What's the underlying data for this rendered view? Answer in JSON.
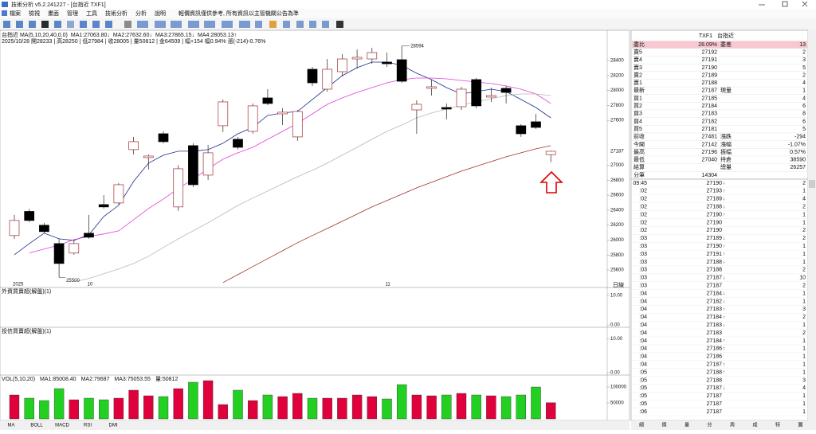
{
  "window": {
    "title": "技術分析 v5.2.241227 - [台指近 TXF1]",
    "menu": [
      "檔案",
      "檢視",
      "畫面",
      "管理",
      "工具",
      "技術分析",
      "分析",
      "說明"
    ],
    "notice": "輕價資訊僅供參考, 所有資訊以主管機關公告為準"
  },
  "chart": {
    "type": "candlestick",
    "header": "台指近 MA(5,10,20,40,0,0)",
    "info": "2025/10/28 開28233 | 高28250 | 低27984 | 收28005 | 量50812 | 金64509 | 幅+154 幅0.94% 漲(-214)-0.76%",
    "ylim": [
      25430,
      28730
    ],
    "yticks": [
      28400,
      28200,
      28000,
      27800,
      27600,
      27000,
      26800,
      26600,
      26400,
      26200,
      26000,
      25800,
      25600
    ],
    "last_price": 27187,
    "period": "日線",
    "up_color": "#e0003c",
    "down_color": "#22d022",
    "categories": [
      "2025",
      null,
      null,
      null,
      null,
      "10",
      null,
      null,
      null,
      null,
      null,
      null,
      null,
      null,
      null,
      null,
      null,
      null,
      null,
      null,
      null,
      null,
      null,
      null,
      null,
      "11",
      null,
      null,
      null,
      null,
      null,
      null,
      null,
      null,
      null,
      null,
      null
    ],
    "candles": [
      {
        "open": 26060,
        "high": 26336,
        "low": 26017,
        "close": 26262
      },
      {
        "open": 26383,
        "high": 26415,
        "low": 26240,
        "close": 26262
      },
      {
        "open": 26198,
        "high": 26230,
        "low": 26090,
        "close": 26113
      },
      {
        "open": 25953,
        "high": 26017,
        "low": 25500,
        "close": 25687
      },
      {
        "open": 25826,
        "high": 25996,
        "low": 25804,
        "close": 25953
      },
      {
        "open": 26091,
        "high": 26336,
        "low": 26017,
        "close": 26038
      },
      {
        "open": 26474,
        "high": 26600,
        "low": 26420,
        "close": 26443
      },
      {
        "open": 26496,
        "high": 26762,
        "low": 26474,
        "close": 26740
      },
      {
        "open": 27209,
        "high": 27379,
        "low": 27145,
        "close": 27315
      },
      {
        "open": 27102,
        "high": 27145,
        "low": 26943,
        "close": 27123
      },
      {
        "open": 27421,
        "high": 27453,
        "low": 27294,
        "close": 27315
      },
      {
        "open": 26443,
        "high": 27000,
        "low": 26390,
        "close": 26953
      },
      {
        "open": 27262,
        "high": 27294,
        "low": 26708,
        "close": 26740
      },
      {
        "open": 26868,
        "high": 27272,
        "low": 26804,
        "close": 27166
      },
      {
        "open": 27528,
        "high": 27879,
        "low": 27443,
        "close": 27847
      },
      {
        "open": 27347,
        "high": 27379,
        "low": 27209,
        "close": 27240
      },
      {
        "open": 27453,
        "high": 27826,
        "low": 27421,
        "close": 27794
      },
      {
        "open": 27900,
        "high": 28017,
        "low": 27804,
        "close": 27826
      },
      {
        "open": 27687,
        "high": 27762,
        "low": 27538,
        "close": 27709
      },
      {
        "open": 27379,
        "high": 27740,
        "low": 27326,
        "close": 27719
      },
      {
        "open": 28283,
        "high": 28315,
        "low": 28060,
        "close": 28102
      },
      {
        "open": 28017,
        "high": 28421,
        "low": 27985,
        "close": 28283
      },
      {
        "open": 28251,
        "high": 28485,
        "low": 28187,
        "close": 28421
      },
      {
        "open": 28421,
        "high": 28549,
        "low": 28294,
        "close": 28443
      },
      {
        "open": 28421,
        "high": 28570,
        "low": 28357,
        "close": 28506
      },
      {
        "open": 28379,
        "high": 28506,
        "low": 28315,
        "close": 28357
      },
      {
        "open": 28411,
        "high": 28594,
        "low": 28102,
        "close": 28123
      },
      {
        "open": 27740,
        "high": 27868,
        "low": 27421,
        "close": 27815
      },
      {
        "open": 28028,
        "high": 28145,
        "low": 27932,
        "close": 28049
      },
      {
        "open": 27772,
        "high": 27826,
        "low": 27613,
        "close": 27751
      },
      {
        "open": 27783,
        "high": 28049,
        "low": 27740,
        "close": 28017
      },
      {
        "open": 28145,
        "high": 28166,
        "low": 27762,
        "close": 27794
      },
      {
        "open": 27911,
        "high": 28038,
        "low": 27847,
        "close": 27932
      },
      {
        "open": 28028,
        "high": 28060,
        "low": 27826,
        "close": 27974
      },
      {
        "open": 27528,
        "high": 27549,
        "low": 27379,
        "close": 27421
      },
      {
        "open": 27581,
        "high": 27687,
        "low": 27485,
        "close": 27506
      },
      {
        "open": 27142,
        "high": 27196,
        "low": 27040,
        "close": 27187
      }
    ],
    "series": [
      {
        "name": "MA1:27063.80↓",
        "color": "#1c2a8c",
        "values": [
          25804,
          25953,
          26092,
          26017,
          25996,
          26070,
          26315,
          26464,
          26783,
          27028,
          27134,
          27187,
          27187,
          27209,
          27294,
          27421,
          27506,
          27666,
          27698,
          27719,
          27879,
          28038,
          28198,
          28304,
          28379,
          28379,
          28336,
          28230,
          28145,
          28038,
          27953,
          27985,
          28017,
          27985,
          27879,
          27772,
          27634
        ]
      },
      {
        "name": "MA2:27632.60↓",
        "color": "#e040d8",
        "values": [
          null,
          25826,
          25879,
          25932,
          26006,
          26049,
          26081,
          26123,
          26272,
          26421,
          26549,
          26687,
          26815,
          26953,
          27081,
          27166,
          27240,
          27347,
          27453,
          27560,
          27687,
          27815,
          27900,
          27974,
          28038,
          28102,
          28145,
          28166,
          28166,
          28155,
          28134,
          28113,
          28092,
          28060,
          28017,
          27953,
          27826
        ]
      },
      {
        "name": "MA3:27865.15↓",
        "color": "#b8b8b8",
        "values": [
          null,
          null,
          null,
          null,
          25443,
          25485,
          25549,
          25613,
          25687,
          25783,
          25900,
          26017,
          26123,
          26230,
          26347,
          26464,
          26560,
          26655,
          26751,
          26847,
          26932,
          27028,
          27134,
          27240,
          27347,
          27453,
          27538,
          27634,
          27698,
          27751,
          27804,
          27847,
          27889,
          27932,
          27953,
          27953,
          27932
        ]
      },
      {
        "name": "MA4:28053.13↑",
        "color": "#a0302a",
        "values": [
          null,
          null,
          null,
          null,
          null,
          null,
          null,
          null,
          null,
          null,
          null,
          null,
          null,
          null,
          25432,
          25538,
          25645,
          25751,
          25857,
          25964,
          26060,
          26155,
          26251,
          26347,
          26443,
          26528,
          26613,
          26698,
          26772,
          26847,
          26921,
          26985,
          27049,
          27113,
          27166,
          27219,
          27262
        ]
      }
    ]
  },
  "panels": [
    {
      "title": "外資買賣超(解盤)(1)",
      "ylim": [
        -0.5,
        12.4
      ],
      "yticks": [
        {
          "value": 10,
          "label": "10.00"
        },
        {
          "value": 0,
          "label": "0.00"
        }
      ]
    },
    {
      "title": "投信買賣超(解盤)(1)",
      "ylim": [
        -0.5,
        13.2
      ],
      "yticks": [
        {
          "value": 10,
          "label": "10.00"
        },
        {
          "value": 0,
          "label": "0.00"
        }
      ]
    }
  ],
  "volume": {
    "title": "VOL(5,10,20)",
    "labels": [
      {
        "text": "MA1:85008.40",
        "color": "#333333"
      },
      {
        "text": "MA2:79687",
        "color": "#20b0c0"
      },
      {
        "text": "MA3:75053.55",
        "color": "#e070b0"
      },
      {
        "text": "量:50812",
        "color": "#2060c0"
      }
    ],
    "ylim": [
      0,
      130000
    ],
    "yticks": [
      100000,
      50000
    ],
    "values": [
      75000,
      65000,
      57500,
      95000,
      60000,
      65000,
      60000,
      65000,
      90000,
      72500,
      70000,
      95000,
      115000,
      120000,
      45000,
      90000,
      57500,
      75000,
      70000,
      80000,
      65000,
      65000,
      65000,
      75000,
      70000,
      62500,
      107500,
      75000,
      72500,
      75000,
      80000,
      75000,
      72500,
      70000,
      75000,
      100000,
      50812
    ]
  },
  "indicator_tabs": [
    "MA",
    "BOLL",
    "MACD",
    "RSI",
    "DMI"
  ],
  "quote": {
    "code": "TXF1",
    "name": "台指近",
    "colors": {
      "up": "#e0002b",
      "down": "#008a00"
    },
    "rows": [
      {
        "label": "委比",
        "price": "28.09%",
        "tone": "up",
        "label2": "委差",
        "value2": 13,
        "tone2": "up",
        "highlight": true
      },
      {
        "label": "賣5",
        "price": 27192,
        "tone": "down",
        "value2": 2
      },
      {
        "label": "賣4",
        "price": 27191,
        "tone": "down",
        "value2": 3
      },
      {
        "label": "賣3",
        "price": 27190,
        "tone": "down",
        "value2": 5
      },
      {
        "label": "賣2",
        "price": 27189,
        "tone": "down",
        "value2": 2
      },
      {
        "label": "賣1",
        "price": 27188,
        "tone": "down",
        "value2": 4
      },
      {
        "label": "最新",
        "price": 27187,
        "tone": "down",
        "label2": "現量",
        "value2": 1
      },
      {
        "label": "買1",
        "price": 27185,
        "tone": "down",
        "value2": 4
      },
      {
        "label": "買2",
        "price": 27184,
        "tone": "down",
        "value2": 6
      },
      {
        "label": "買3",
        "price": 27183,
        "tone": "down",
        "value2": 8
      },
      {
        "label": "買4",
        "price": 27182,
        "tone": "down",
        "value2": 6
      },
      {
        "label": "買5",
        "price": 27181,
        "tone": "down",
        "value2": 5
      },
      {
        "label": "前收",
        "price": 27481,
        "label2": "漲跌",
        "value2": -294,
        "tone2": "down"
      },
      {
        "label": "今開",
        "price": 27142,
        "tone": "down",
        "label2": "漲幅",
        "value2": "-1.07%",
        "tone2": "down"
      },
      {
        "label": "最高",
        "price": 27196,
        "tone": "down",
        "label2": "振幅",
        "value2": "0.57%"
      },
      {
        "label": "最低",
        "price": 27040,
        "tone": "down",
        "label2": "持倉",
        "value2": 38590
      },
      {
        "label": "結算",
        "label2": "總量",
        "value2": 26257
      },
      {
        "label": "分筆",
        "price": 14304
      }
    ]
  },
  "ticks": {
    "colors": {
      "↑": "#e0002b",
      "↓": "#008a00",
      "price": "#008a00"
    },
    "rows": [
      {
        "time": "09:45",
        "price": 27190,
        "dir": "↓",
        "vol": 2
      },
      {
        "time": ":02",
        "price": 27193,
        "dir": "↑",
        "vol": 1
      },
      {
        "time": ":02",
        "price": 27189,
        "dir": "↓",
        "vol": 4
      },
      {
        "time": ":02",
        "price": 27188,
        "dir": "↓",
        "vol": 2
      },
      {
        "time": ":02",
        "price": 27190,
        "dir": "↑",
        "vol": 1
      },
      {
        "time": ":02",
        "price": 27190,
        "vol": 1
      },
      {
        "time": ":02",
        "price": 27190,
        "vol": 2
      },
      {
        "time": ":03",
        "price": 27189,
        "dir": "↓",
        "vol": 2
      },
      {
        "time": ":03",
        "price": 27190,
        "dir": "↑",
        "vol": 1
      },
      {
        "time": ":03",
        "price": 27191,
        "dir": "↑",
        "vol": 1
      },
      {
        "time": ":03",
        "price": 27188,
        "dir": "↓",
        "vol": 1
      },
      {
        "time": ":03",
        "price": 27188,
        "vol": 2
      },
      {
        "time": ":03",
        "price": 27187,
        "dir": "↓",
        "vol": 10
      },
      {
        "time": ":03",
        "price": 27187,
        "vol": 2
      },
      {
        "time": ":04",
        "price": 27184,
        "dir": "↓",
        "vol": 1
      },
      {
        "time": ":04",
        "price": 27182,
        "dir": "↓",
        "vol": 1
      },
      {
        "time": ":04",
        "price": 27183,
        "dir": "↑",
        "vol": 3
      },
      {
        "time": ":04",
        "price": 27184,
        "dir": "↑",
        "vol": 2
      },
      {
        "time": ":04",
        "price": 27183,
        "dir": "↓",
        "vol": 1
      },
      {
        "time": ":04",
        "price": 27183,
        "vol": 2
      },
      {
        "time": ":04",
        "price": 27184,
        "dir": "↑",
        "vol": 1
      },
      {
        "time": ":04",
        "price": 27186,
        "dir": "↑",
        "vol": 1
      },
      {
        "time": ":04",
        "price": 27186,
        "vol": 1
      },
      {
        "time": ":04",
        "price": 27187,
        "dir": "↑",
        "vol": 1
      },
      {
        "time": ":05",
        "price": 27188,
        "dir": "↑",
        "vol": 1
      },
      {
        "time": ":05",
        "price": 27188,
        "vol": 3
      },
      {
        "time": ":05",
        "price": 27187,
        "dir": "↓",
        "vol": 4
      },
      {
        "time": ":05",
        "price": 27187,
        "vol": 1
      },
      {
        "time": ":05",
        "price": 27187,
        "vol": 1
      },
      {
        "time": ":06",
        "price": 27187,
        "vol": 1
      }
    ]
  },
  "view_tabs": [
    "細",
    "價",
    "量",
    "分",
    "周",
    "成",
    "特",
    "圖"
  ]
}
